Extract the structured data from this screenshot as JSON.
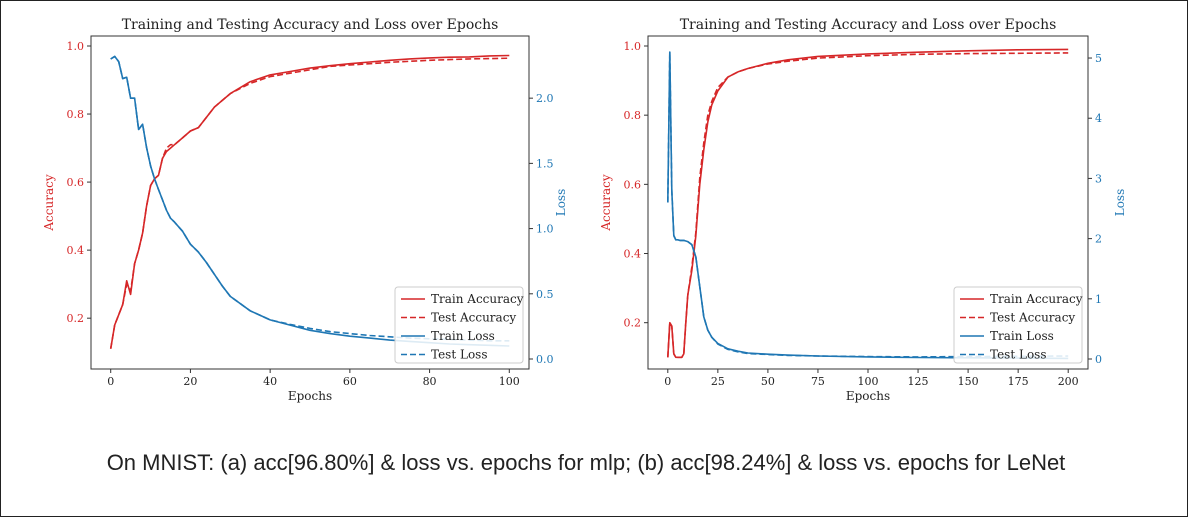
{
  "caption": "On MNIST: (a) acc[96.80%] & loss vs. epochs for mlp; (b) acc[98.24%] & loss vs. epochs for LeNet",
  "colors": {
    "accuracy": "#d62728",
    "loss": "#1f77b4",
    "axis": "#333333",
    "text": "#222222"
  },
  "chart_data": [
    {
      "type": "line",
      "title": "Training and Testing Accuracy and Loss over Epochs",
      "xlabel": "Epochs",
      "ylabel_left": "Accuracy",
      "ylabel_right": "Loss",
      "xlim": [
        0,
        100
      ],
      "ylim_left": [
        0.08,
        1.0
      ],
      "ylim_right": [
        0.0,
        2.4
      ],
      "xticks": [
        0,
        20,
        40,
        60,
        80,
        100
      ],
      "yticks_left": [
        0.2,
        0.4,
        0.6,
        0.8,
        1.0
      ],
      "yticks_right": [
        0.0,
        0.5,
        1.0,
        1.5,
        2.0
      ],
      "xtick_labels": [
        "0",
        "20",
        "40",
        "60",
        "80",
        "100"
      ],
      "ytick_labels_left": [
        "0.2",
        "0.4",
        "0.6",
        "0.8",
        "1.0"
      ],
      "ytick_labels_right": [
        "0.0",
        "0.5",
        "1.0",
        "1.5",
        "2.0"
      ],
      "legend_position": "lower-right",
      "series": [
        {
          "name": "Train Accuracy",
          "axis": "left",
          "style": "solid",
          "color": "#d62728",
          "x": [
            0,
            1,
            2,
            3,
            4,
            5,
            6,
            7,
            8,
            9,
            10,
            11,
            12,
            13,
            14,
            15,
            16,
            18,
            20,
            22,
            24,
            26,
            28,
            30,
            35,
            40,
            45,
            50,
            55,
            60,
            65,
            70,
            75,
            80,
            85,
            90,
            95,
            100
          ],
          "y": [
            0.11,
            0.18,
            0.21,
            0.24,
            0.31,
            0.27,
            0.36,
            0.4,
            0.45,
            0.53,
            0.59,
            0.61,
            0.62,
            0.67,
            0.69,
            0.7,
            0.71,
            0.73,
            0.75,
            0.76,
            0.79,
            0.82,
            0.84,
            0.86,
            0.895,
            0.915,
            0.925,
            0.935,
            0.942,
            0.948,
            0.953,
            0.958,
            0.962,
            0.965,
            0.967,
            0.968,
            0.971,
            0.972
          ]
        },
        {
          "name": "Test Accuracy",
          "axis": "left",
          "style": "dashed",
          "color": "#d62728",
          "x": [
            0,
            1,
            2,
            3,
            4,
            5,
            6,
            7,
            8,
            9,
            10,
            11,
            12,
            13,
            14,
            15,
            16,
            18,
            20,
            22,
            24,
            26,
            28,
            30,
            35,
            40,
            45,
            50,
            55,
            60,
            65,
            70,
            75,
            80,
            85,
            90,
            95,
            100
          ],
          "y": [
            0.11,
            0.18,
            0.21,
            0.24,
            0.3,
            0.28,
            0.36,
            0.4,
            0.45,
            0.53,
            0.59,
            0.61,
            0.62,
            0.67,
            0.7,
            0.71,
            0.71,
            0.73,
            0.75,
            0.76,
            0.79,
            0.82,
            0.84,
            0.86,
            0.89,
            0.91,
            0.92,
            0.93,
            0.94,
            0.944,
            0.948,
            0.952,
            0.955,
            0.958,
            0.96,
            0.962,
            0.963,
            0.964
          ]
        },
        {
          "name": "Train Loss",
          "axis": "right",
          "style": "solid",
          "color": "#1f77b4",
          "x": [
            0,
            1,
            2,
            3,
            4,
            5,
            6,
            7,
            8,
            9,
            10,
            11,
            12,
            13,
            14,
            15,
            16,
            18,
            20,
            22,
            24,
            26,
            28,
            30,
            35,
            40,
            45,
            50,
            55,
            60,
            65,
            70,
            75,
            80,
            85,
            90,
            95,
            100
          ],
          "y": [
            2.3,
            2.32,
            2.28,
            2.15,
            2.16,
            2.0,
            2.0,
            1.76,
            1.8,
            1.62,
            1.48,
            1.38,
            1.3,
            1.22,
            1.14,
            1.08,
            1.05,
            0.98,
            0.88,
            0.82,
            0.74,
            0.65,
            0.56,
            0.48,
            0.37,
            0.3,
            0.26,
            0.22,
            0.195,
            0.175,
            0.16,
            0.145,
            0.135,
            0.125,
            0.115,
            0.11,
            0.105,
            0.1
          ]
        },
        {
          "name": "Test Loss",
          "axis": "right",
          "style": "dashed",
          "color": "#1f77b4",
          "x": [
            0,
            1,
            2,
            3,
            4,
            5,
            6,
            7,
            8,
            9,
            10,
            11,
            12,
            13,
            14,
            15,
            16,
            18,
            20,
            22,
            24,
            26,
            28,
            30,
            35,
            40,
            45,
            50,
            55,
            60,
            65,
            70,
            75,
            80,
            85,
            90,
            95,
            100
          ],
          "y": [
            2.3,
            2.32,
            2.28,
            2.15,
            2.16,
            2.0,
            2.0,
            1.76,
            1.8,
            1.62,
            1.48,
            1.38,
            1.3,
            1.22,
            1.14,
            1.08,
            1.05,
            0.98,
            0.88,
            0.82,
            0.74,
            0.65,
            0.56,
            0.48,
            0.37,
            0.3,
            0.265,
            0.235,
            0.21,
            0.195,
            0.18,
            0.17,
            0.16,
            0.155,
            0.15,
            0.145,
            0.14,
            0.14
          ]
        }
      ]
    },
    {
      "type": "line",
      "title": "Training and Testing Accuracy and Loss over Epochs",
      "xlabel": "Epochs",
      "ylabel_left": "Accuracy",
      "ylabel_right": "Loss",
      "xlim": [
        0,
        200
      ],
      "ylim_left": [
        0.095,
        1.0
      ],
      "ylim_right": [
        0.0,
        5.2
      ],
      "xticks": [
        0,
        25,
        50,
        75,
        100,
        125,
        150,
        175,
        200
      ],
      "yticks_left": [
        0.2,
        0.4,
        0.6,
        0.8,
        1.0
      ],
      "yticks_right": [
        0,
        1,
        2,
        3,
        4,
        5
      ],
      "xtick_labels": [
        "0",
        "25",
        "50",
        "75",
        "100",
        "125",
        "150",
        "175",
        "200"
      ],
      "ytick_labels_left": [
        "0.2",
        "0.4",
        "0.6",
        "0.8",
        "1.0"
      ],
      "ytick_labels_right": [
        "0",
        "1",
        "2",
        "3",
        "4",
        "5"
      ],
      "legend_position": "lower-right",
      "series": [
        {
          "name": "Train Accuracy",
          "axis": "left",
          "style": "solid",
          "color": "#d62728",
          "x": [
            0,
            1,
            2,
            3,
            4,
            5,
            6,
            7,
            8,
            9,
            10,
            12,
            14,
            16,
            18,
            20,
            22,
            25,
            30,
            35,
            40,
            50,
            60,
            75,
            100,
            125,
            150,
            175,
            200
          ],
          "y": [
            0.1,
            0.2,
            0.19,
            0.11,
            0.1,
            0.1,
            0.1,
            0.1,
            0.11,
            0.2,
            0.28,
            0.35,
            0.45,
            0.6,
            0.7,
            0.78,
            0.83,
            0.87,
            0.91,
            0.925,
            0.935,
            0.95,
            0.96,
            0.97,
            0.977,
            0.982,
            0.986,
            0.989,
            0.99
          ]
        },
        {
          "name": "Test Accuracy",
          "axis": "left",
          "style": "dashed",
          "color": "#d62728",
          "x": [
            0,
            1,
            2,
            3,
            4,
            5,
            6,
            7,
            8,
            9,
            10,
            12,
            14,
            16,
            18,
            20,
            22,
            25,
            30,
            35,
            40,
            50,
            60,
            75,
            100,
            125,
            150,
            175,
            200
          ],
          "y": [
            0.1,
            0.2,
            0.19,
            0.11,
            0.1,
            0.1,
            0.1,
            0.1,
            0.11,
            0.2,
            0.28,
            0.36,
            0.46,
            0.62,
            0.72,
            0.8,
            0.84,
            0.88,
            0.91,
            0.925,
            0.935,
            0.948,
            0.956,
            0.965,
            0.972,
            0.976,
            0.978,
            0.979,
            0.98
          ]
        },
        {
          "name": "Train Loss",
          "axis": "right",
          "style": "solid",
          "color": "#1f77b4",
          "x": [
            0,
            1,
            2,
            3,
            4,
            5,
            6,
            8,
            10,
            12,
            14,
            16,
            18,
            20,
            22,
            25,
            30,
            35,
            40,
            50,
            60,
            75,
            100,
            125,
            150,
            175,
            200
          ],
          "y": [
            2.6,
            5.1,
            2.8,
            2.05,
            1.98,
            1.98,
            1.97,
            1.97,
            1.95,
            1.9,
            1.7,
            1.2,
            0.7,
            0.48,
            0.36,
            0.26,
            0.17,
            0.13,
            0.1,
            0.08,
            0.065,
            0.05,
            0.035,
            0.025,
            0.02,
            0.015,
            0.01
          ]
        },
        {
          "name": "Test Loss",
          "axis": "right",
          "style": "dashed",
          "color": "#1f77b4",
          "x": [
            0,
            1,
            2,
            3,
            4,
            5,
            6,
            8,
            10,
            12,
            14,
            16,
            18,
            20,
            22,
            25,
            30,
            35,
            40,
            50,
            60,
            75,
            100,
            125,
            150,
            175,
            200
          ],
          "y": [
            2.6,
            5.1,
            2.8,
            2.05,
            1.98,
            1.98,
            1.97,
            1.97,
            1.95,
            1.9,
            1.7,
            1.2,
            0.7,
            0.48,
            0.36,
            0.25,
            0.16,
            0.12,
            0.09,
            0.075,
            0.06,
            0.05,
            0.04,
            0.035,
            0.04,
            0.045,
            0.05
          ]
        }
      ]
    }
  ]
}
